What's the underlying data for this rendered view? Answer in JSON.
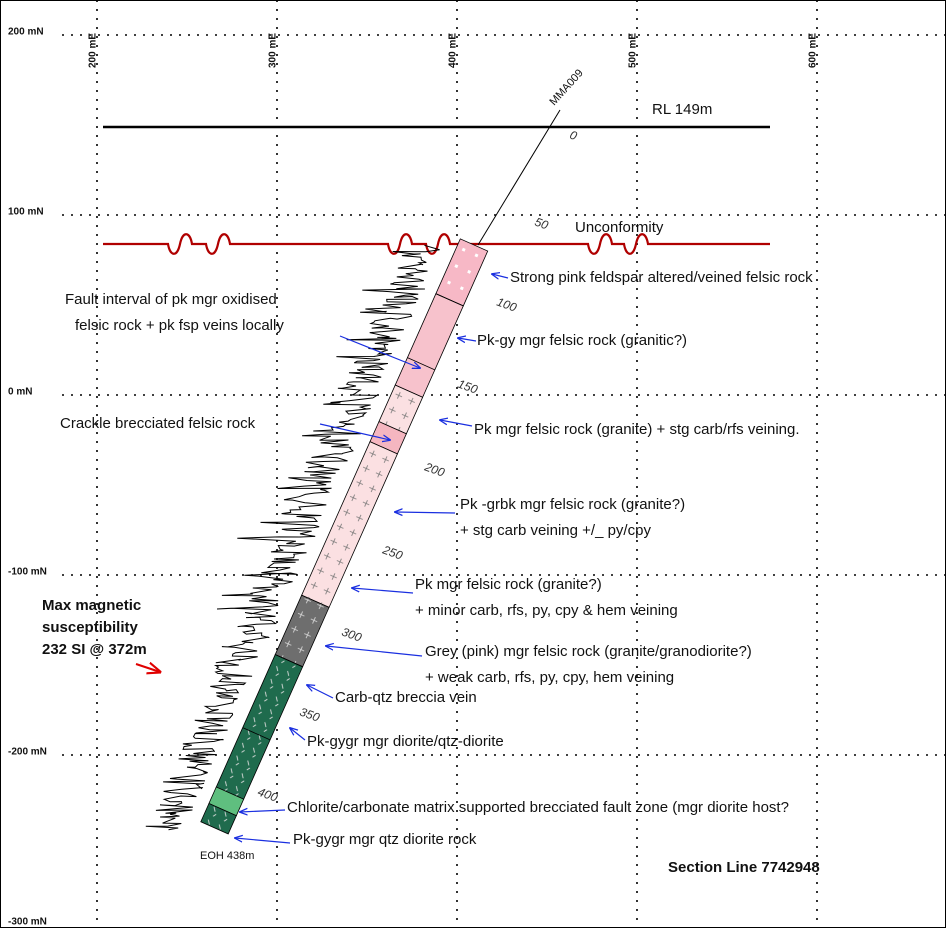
{
  "grid": {
    "northings": [
      "200 mN",
      "100 mN",
      "0 mN",
      "-100 mN",
      "-200 mN",
      "-300 mN"
    ],
    "eastings": [
      "200 mE",
      "300 mE",
      "400 mE",
      "500 mE",
      "600 mE"
    ]
  },
  "hole": {
    "name": "MMA009",
    "depths": [
      "0",
      "50",
      "100",
      "150",
      "200",
      "250",
      "300",
      "350",
      "400"
    ],
    "eoh": "EOH 438m"
  },
  "rl_label": "RL 149m",
  "unconformity": "Unconformity",
  "annotations": [
    {
      "lines": [
        "Strong pink feldspar altered/veined felsic rock"
      ]
    },
    {
      "lines": [
        "Fault interval of pk mgr oxidised",
        "felsic rock + pk fsp veins locally"
      ]
    },
    {
      "lines": [
        "Pk-gy mgr felsic rock (granitic?)"
      ]
    },
    {
      "lines": [
        "Crackle brecciated felsic rock"
      ]
    },
    {
      "lines": [
        "Pk mgr felsic rock (granite) + stg carb/rfs veining."
      ]
    },
    {
      "lines": [
        "Pk -grbk mgr felsic rock (granite?)",
        "+ stg carb veining +/_ py/cpy"
      ]
    },
    {
      "lines": [
        "Pk mgr felsic rock (granite?)",
        "+ minor carb, rfs, py, cpy & hem veining"
      ]
    },
    {
      "lines": [
        "Grey (pink) mgr felsic rock (granite/granodiorite?)",
        "+ weak carb, rfs, py, cpy, hem veining"
      ]
    },
    {
      "lines": [
        "Carb-qtz breccia vein"
      ]
    },
    {
      "lines": [
        "Pk-gygr mgr diorite/qtz-diorite"
      ]
    },
    {
      "lines": [
        "Chlorite/carbonate matrix supported brecciated fault zone (mgr diorite host?"
      ]
    },
    {
      "lines": [
        "Pk-gygr mgr qtz diorite rock"
      ]
    }
  ],
  "max_magnetic": [
    "Max magnetic",
    "susceptibility",
    "232 SI @ 372m"
  ],
  "section_line": "Section Line 7742948"
}
